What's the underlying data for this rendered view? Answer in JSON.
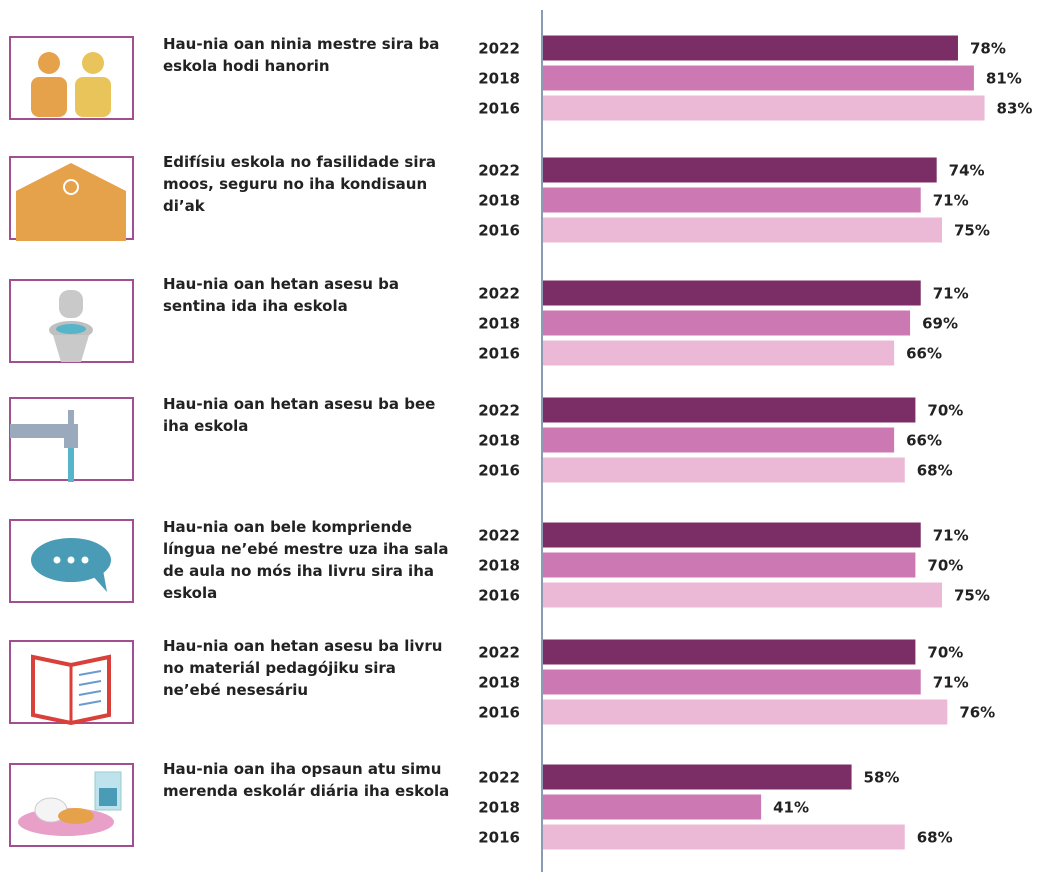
{
  "chart_data": {
    "type": "bar",
    "categories": [
      "Hau-nia oan ninia mestre sira ba eskola hodi hanorin",
      "Edifísiu eskola no fasilidade sira moos, seguru no iha kondisaun di’ak",
      "Hau-nia oan hetan asesu ba sentina ida iha eskola",
      "Hau-nia oan hetan asesu ba bee iha eskola",
      "Hau-nia oan bele kompriende língua ne’ebé mestre uza iha sala de aula no mós iha livru sira iha eskola",
      "Hau-nia oan hetan asesu ba livru no materiál pedagójiku sira ne’ebé nesesáriu",
      "Hau-nia oan iha opsaun atu simu merenda eskolár diária iha eskola"
    ],
    "series": [
      {
        "name": "2022",
        "color": "#7b2d65",
        "values": [
          78,
          74,
          71,
          70,
          71,
          70,
          58
        ],
        "value_labels": [
          "78%",
          "74%",
          "71%",
          "70%",
          "71%",
          "70%",
          "58%"
        ]
      },
      {
        "name": "2018",
        "color": "#cc79b3",
        "values": [
          81,
          71,
          69,
          66,
          70,
          71,
          41
        ],
        "value_labels": [
          "81%",
          "71%",
          "69%",
          "66%",
          "70%",
          "71%",
          "41%"
        ]
      },
      {
        "name": "2016",
        "color": "#ebb8d6",
        "values": [
          83,
          75,
          66,
          68,
          75,
          76,
          68
        ],
        "value_labels": [
          "83%",
          "75%",
          "66%",
          "68%",
          "75%",
          "76%",
          "68%"
        ]
      }
    ],
    "xlim": [
      0,
      100
    ]
  }
}
